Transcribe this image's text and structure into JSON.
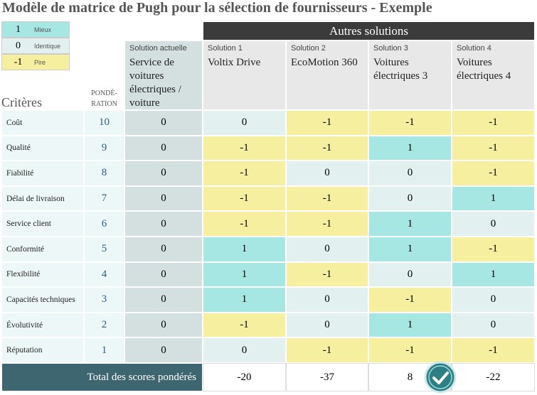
{
  "title": "Modèle de matrice de Pugh pour la sélection de fournisseurs - Exemple",
  "legend": [
    {
      "value": 1,
      "label": "Mieux",
      "color": "#a6e6e3"
    },
    {
      "value": 0,
      "label": "Identique",
      "color": "#e2f0f0"
    },
    {
      "value": -1,
      "label": "Pire",
      "color": "#f5ef9f"
    }
  ],
  "headers": {
    "criteria": "Critères",
    "weight": [
      "PONDÉ-",
      "RATION"
    ],
    "current_label": "Solution actuelle",
    "current_name": "Service de voitures électriques / voiture",
    "other": "Autres solutions"
  },
  "solutions": [
    {
      "label": "Solution 1",
      "name": "Voltix Drive"
    },
    {
      "label": "Solution 2",
      "name": "EcoMotion 360"
    },
    {
      "label": "Solution 3",
      "name": "Voitures électriques 3"
    },
    {
      "label": "Solution 4",
      "name": "Voitures électriques 4"
    }
  ],
  "rows": [
    {
      "criterion": "Coût",
      "weight": 10,
      "current": 0,
      "scores": [
        0,
        -1,
        -1,
        -1
      ]
    },
    {
      "criterion": "Qualité",
      "weight": 9,
      "current": 0,
      "scores": [
        -1,
        -1,
        1,
        -1
      ]
    },
    {
      "criterion": "Fiabilité",
      "weight": 8,
      "current": 0,
      "scores": [
        -1,
        0,
        0,
        -1
      ]
    },
    {
      "criterion": "Délai de livraison",
      "weight": 7,
      "current": 0,
      "scores": [
        -1,
        -1,
        0,
        1
      ]
    },
    {
      "criterion": "Service client",
      "weight": 6,
      "current": 0,
      "scores": [
        -1,
        -1,
        1,
        0
      ]
    },
    {
      "criterion": "Conformité",
      "weight": 5,
      "current": 0,
      "scores": [
        1,
        0,
        1,
        -1
      ]
    },
    {
      "criterion": "Flexibilité",
      "weight": 4,
      "current": 0,
      "scores": [
        1,
        -1,
        0,
        1
      ]
    },
    {
      "criterion": "Capacités techniques",
      "weight": 3,
      "current": 0,
      "scores": [
        1,
        0,
        -1,
        0
      ]
    },
    {
      "criterion": "Évolutivité",
      "weight": 2,
      "current": 0,
      "scores": [
        -1,
        0,
        1,
        0
      ]
    },
    {
      "criterion": "Réputation",
      "weight": 1,
      "current": 0,
      "scores": [
        0,
        -1,
        -1,
        -1
      ]
    }
  ],
  "total": {
    "label": "Total des scores pondérés",
    "values": [
      -20,
      -37,
      8,
      -22
    ]
  }
}
